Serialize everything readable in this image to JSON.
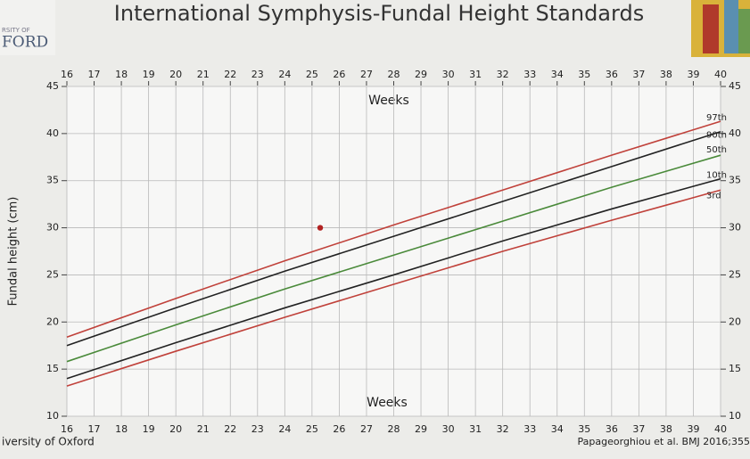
{
  "logo": {
    "line1": "RSITY OF",
    "line2": "FORD"
  },
  "footer": {
    "left": "iversity of Oxford",
    "right": "Papageorghiou et al. BMJ 2016;355"
  },
  "chart_data": {
    "type": "line",
    "title": "International Symphysis-Fundal Height Standards",
    "x_label": "Weeks",
    "x_label_top": "Weeks",
    "y_label": "Fundal height (cm)",
    "x": [
      16,
      20,
      24,
      28,
      32,
      36,
      40
    ],
    "series": [
      {
        "name": "97th",
        "color": "#c0413a",
        "values": [
          18.4,
          22.5,
          26.5,
          30.3,
          34.0,
          37.7,
          41.3
        ]
      },
      {
        "name": "90th",
        "color": "#222222",
        "values": [
          17.5,
          21.5,
          25.4,
          29.1,
          32.8,
          36.5,
          40.2
        ]
      },
      {
        "name": "50th",
        "color": "#4a8a3a",
        "values": [
          15.8,
          19.7,
          23.5,
          27.1,
          30.7,
          34.3,
          37.7
        ]
      },
      {
        "name": "10th",
        "color": "#222222",
        "values": [
          14.0,
          17.8,
          21.5,
          25.0,
          28.6,
          32.0,
          35.2
        ]
      },
      {
        "name": "3rd",
        "color": "#c0413a",
        "values": [
          13.2,
          16.9,
          20.5,
          24.0,
          27.5,
          30.8,
          34.0
        ]
      }
    ],
    "marker": {
      "x": 25.3,
      "y": 30,
      "color": "#b22222"
    },
    "xlim": [
      16,
      40
    ],
    "ylim": [
      10,
      45
    ],
    "xticks": [
      16,
      17,
      18,
      19,
      20,
      21,
      22,
      23,
      24,
      25,
      26,
      27,
      28,
      29,
      30,
      31,
      32,
      33,
      34,
      35,
      36,
      37,
      38,
      39,
      40
    ],
    "yticks": [
      10,
      15,
      20,
      25,
      30,
      35,
      40,
      45
    ],
    "grid": true
  }
}
